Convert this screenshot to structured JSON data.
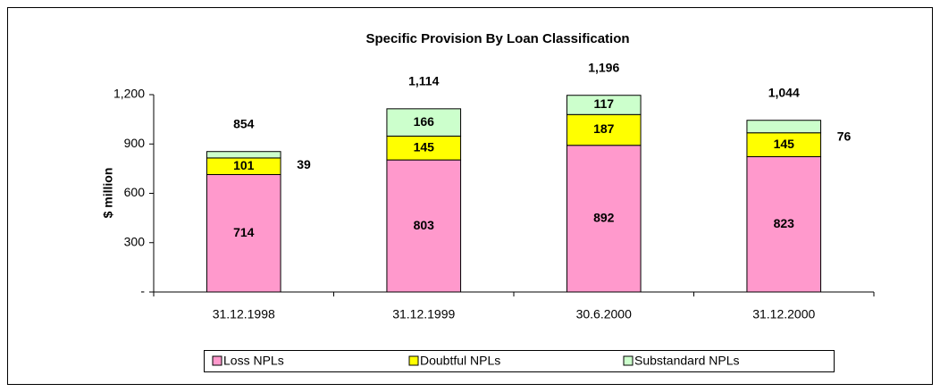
{
  "chart_data": {
    "type": "stacked_bar",
    "title": "Specific Provision By Loan Classification",
    "y_label": "$ million",
    "categories": [
      "31.12.1998",
      "31.12.1999",
      "30.6.2000",
      "31.12.2000"
    ],
    "series": [
      {
        "name": "Loss NPLs",
        "color": "#ff99cc",
        "values": [
          714,
          803,
          892,
          823
        ]
      },
      {
        "name": "Doubtful NPLs",
        "color": "#ffff00",
        "values": [
          101,
          145,
          187,
          145
        ]
      },
      {
        "name": "Substandard NPLs",
        "color": "#ccffcc",
        "values": [
          39,
          166,
          117,
          76
        ]
      }
    ],
    "totals": [
      854,
      1114,
      1196,
      1044
    ],
    "total_labels": [
      "854",
      "1,114",
      "1,196",
      "1,044"
    ],
    "ylim": [
      0,
      1200
    ],
    "yticks": [
      {
        "value": 0,
        "label": "-"
      },
      300,
      600,
      900,
      {
        "value": 1200,
        "label": "1,200"
      }
    ],
    "legend": "bottom"
  }
}
